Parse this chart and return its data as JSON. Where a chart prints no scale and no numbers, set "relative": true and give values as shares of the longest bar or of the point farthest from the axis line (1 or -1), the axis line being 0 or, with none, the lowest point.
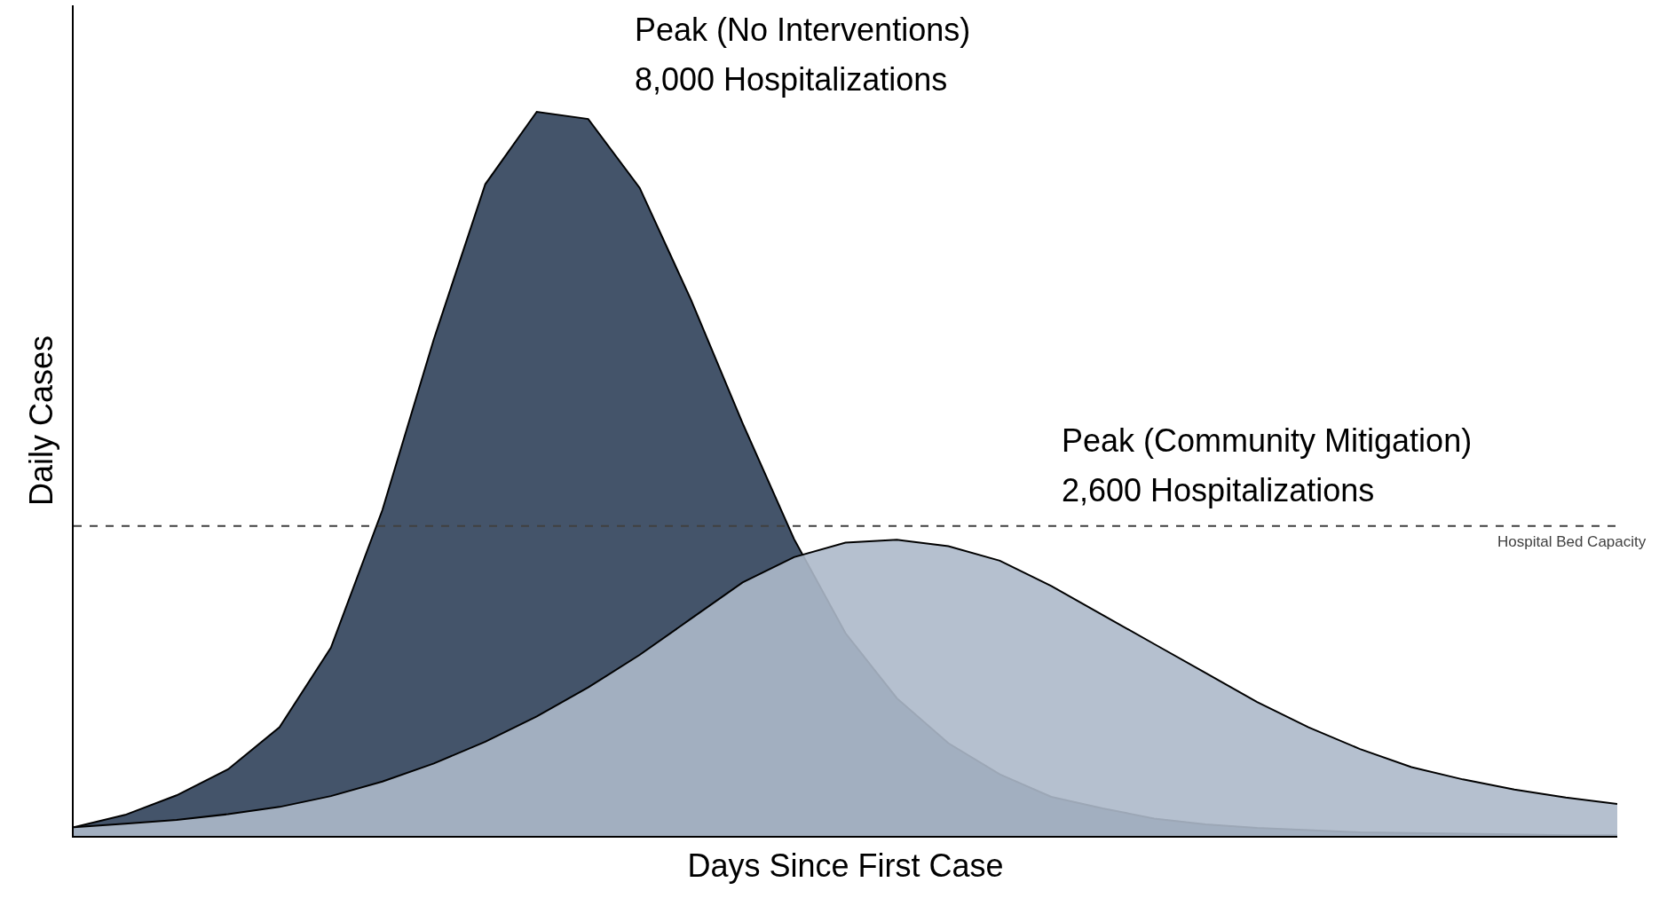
{
  "chart_data": {
    "type": "area",
    "relative": true,
    "xlabel": "Days Since First Case",
    "ylabel": "Daily Cases",
    "categories": [
      null,
      null,
      null,
      null,
      null,
      null,
      null,
      null,
      null,
      null,
      null,
      null,
      null,
      null,
      null,
      null,
      null,
      null,
      null,
      null,
      null,
      null,
      null,
      null,
      null,
      null,
      null,
      null,
      null,
      null,
      null
    ],
    "series": [
      {
        "color": "#44546a",
        "values": [
          0.012,
          0.029,
          0.056,
          0.092,
          0.15,
          0.26,
          0.45,
          0.686,
          0.9,
          1.0,
          0.99,
          0.895,
          0.74,
          0.57,
          0.41,
          0.28,
          0.19,
          0.128,
          0.085,
          0.054,
          0.038,
          0.024,
          0.016,
          0.011,
          0.008,
          0.005,
          0.004,
          0.003,
          0.002,
          0.001,
          0.001
        ]
      },
      {
        "color": "#adb9ca",
        "values": [
          0.012,
          0.017,
          0.022,
          0.03,
          0.04,
          0.055,
          0.075,
          0.1,
          0.13,
          0.165,
          0.205,
          0.25,
          0.3,
          0.35,
          0.385,
          0.405,
          0.409,
          0.4,
          0.38,
          0.345,
          0.305,
          0.265,
          0.225,
          0.185,
          0.15,
          0.12,
          0.095,
          0.078,
          0.064,
          0.053,
          0.044
        ]
      }
    ],
    "ref_lines": [
      {
        "axis": "y",
        "value": 0.428,
        "label": "Hospital Bed Capacity",
        "color": "#404040",
        "line_style": "dashed"
      }
    ],
    "annotations": [
      "Peak (No Interventions)",
      "8,000 Hospitalizations",
      "Peak (Community Mitigation)",
      "2,600 Hospitalizations"
    ],
    "marker": "none"
  }
}
